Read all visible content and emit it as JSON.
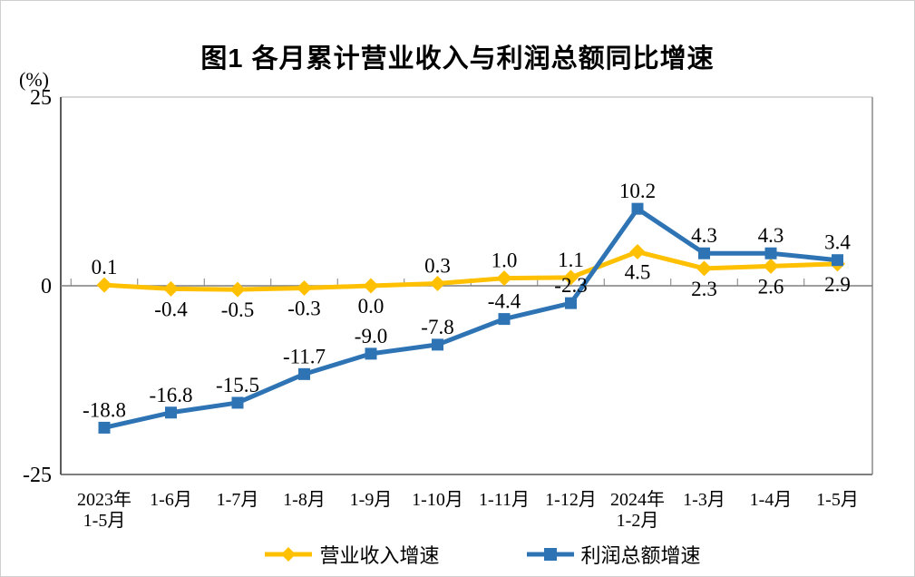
{
  "title": "图1  各月累计营业收入与利润总额同比增速",
  "y_axis": {
    "unit": "(%)",
    "ticks": [
      25,
      0,
      -25
    ]
  },
  "chart_data": {
    "type": "line",
    "title": "图1 各月累计营业收入与利润总额同比增速",
    "ylabel": "(%)",
    "ylim": [
      -25,
      25
    ],
    "yticks": [
      25,
      0,
      -25
    ],
    "grid": false,
    "legend_position": "bottom",
    "categories": [
      [
        "2023年",
        "1-5月"
      ],
      [
        "1-6月"
      ],
      [
        "1-7月"
      ],
      [
        "1-8月"
      ],
      [
        "1-9月"
      ],
      [
        "1-10月"
      ],
      [
        "1-11月"
      ],
      [
        "1-12月"
      ],
      [
        "2024年",
        "1-2月"
      ],
      [
        "1-3月"
      ],
      [
        "1-4月"
      ],
      [
        "1-5月"
      ]
    ],
    "series": [
      {
        "name": "营业收入增速",
        "color": "#FFC000",
        "marker": "diamond",
        "values": [
          0.1,
          -0.4,
          -0.5,
          -0.3,
          0.0,
          0.3,
          1.0,
          1.1,
          4.5,
          2.3,
          2.6,
          2.9
        ],
        "labels": [
          "0.1",
          "-0.4",
          "-0.5",
          "-0.3",
          "0.0",
          "0.3",
          "1.0",
          "1.1",
          "4.5",
          "2.3",
          "2.6",
          "2.9"
        ],
        "label_side": [
          "above",
          "below",
          "below",
          "below",
          "below",
          "above",
          "above",
          "above",
          "below",
          "below",
          "below",
          "below"
        ]
      },
      {
        "name": "利润总额增速",
        "color": "#2E74B5",
        "marker": "square",
        "values": [
          -18.8,
          -16.8,
          -15.5,
          -11.7,
          -9.0,
          -7.8,
          -4.4,
          -2.3,
          10.2,
          4.3,
          4.3,
          3.4
        ],
        "labels": [
          "-18.8",
          "-16.8",
          "-15.5",
          "-11.7",
          "-9.0",
          "-7.8",
          "-4.4",
          "-2.3",
          "10.2",
          "4.3",
          "4.3",
          "3.4"
        ],
        "label_side": [
          "above",
          "above",
          "above",
          "above",
          "above",
          "above",
          "above",
          "above",
          "above",
          "above",
          "above",
          "above"
        ]
      }
    ]
  },
  "legend": {
    "items": [
      {
        "label": "营业收入增速",
        "color": "#FFC000",
        "marker": "diamond"
      },
      {
        "label": "利润总额增速",
        "color": "#2E74B5",
        "marker": "square"
      }
    ]
  },
  "colors": {
    "axis": "#595959",
    "zero_line": "#7F7F7F",
    "border_top": "#D9D9D9",
    "border_right": "#A6A6A6",
    "border_bottom": "#7F7F7F"
  }
}
